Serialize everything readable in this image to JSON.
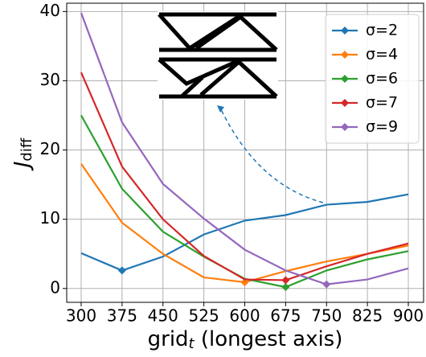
{
  "chart_data": {
    "type": "line",
    "ylabel": {
      "main": "J",
      "sub": "diff"
    },
    "xlabel": {
      "main": "grid",
      "sub": "t",
      "rest": " (longest axis)"
    },
    "x": [
      300,
      375,
      450,
      525,
      600,
      675,
      750,
      825,
      900
    ],
    "series": [
      {
        "name": "σ=2",
        "color": "#1f77b4",
        "values": [
          5.1,
          2.6,
          4.6,
          7.8,
          9.8,
          10.6,
          12.1,
          12.5,
          13.6
        ]
      },
      {
        "name": "σ=4",
        "color": "#ff7f0e",
        "values": [
          18.0,
          9.5,
          5.0,
          1.6,
          0.9,
          2.5,
          3.9,
          5.0,
          6.2
        ]
      },
      {
        "name": "σ=6",
        "color": "#2ca02c",
        "values": [
          25.0,
          14.4,
          8.2,
          4.6,
          1.4,
          0.2,
          2.6,
          4.2,
          5.4
        ]
      },
      {
        "name": "σ=7",
        "color": "#d62728",
        "values": [
          31.2,
          17.6,
          10.0,
          4.7,
          1.3,
          1.2,
          3.2,
          5.0,
          6.5
        ]
      },
      {
        "name": "σ=9",
        "color": "#9467bd",
        "values": [
          39.8,
          24.0,
          15.1,
          10.1,
          5.6,
          2.6,
          0.6,
          1.3,
          2.9
        ]
      }
    ],
    "xlim": [
      273.5,
      928
    ],
    "ylim": [
      -2,
      41.2
    ],
    "xticks": [
      300,
      375,
      450,
      525,
      600,
      675,
      750,
      825,
      900
    ],
    "yticks": [
      0,
      10,
      20,
      30,
      40
    ],
    "grid": true,
    "legend": "upper right"
  }
}
